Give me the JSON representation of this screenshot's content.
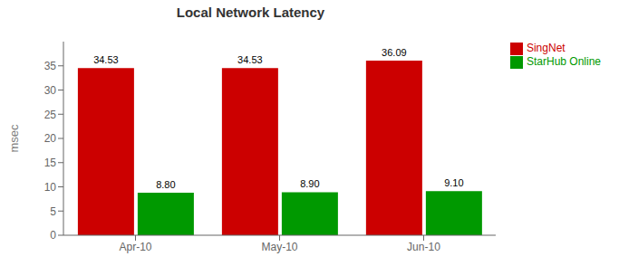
{
  "chart_data": {
    "type": "bar",
    "title": "Local Network Latency",
    "categories": [
      "Apr-10",
      "May-10",
      "Jun-10"
    ],
    "series": [
      {
        "name": "SingNet",
        "color": "#CC0000",
        "values": [
          34.53,
          34.53,
          36.09
        ],
        "value_labels": [
          "34.53",
          "34.53",
          "36.09"
        ]
      },
      {
        "name": "StarHub Online",
        "color": "#009900",
        "values": [
          8.8,
          8.9,
          9.1
        ],
        "value_labels": [
          "8.80",
          "8.90",
          "9.10"
        ]
      }
    ],
    "ylabel": "msec",
    "ylim": [
      0,
      40
    ],
    "yticks": [
      0,
      5,
      10,
      15,
      20,
      25,
      30,
      35
    ],
    "grid": false,
    "legend": "right",
    "data_labels": true
  }
}
